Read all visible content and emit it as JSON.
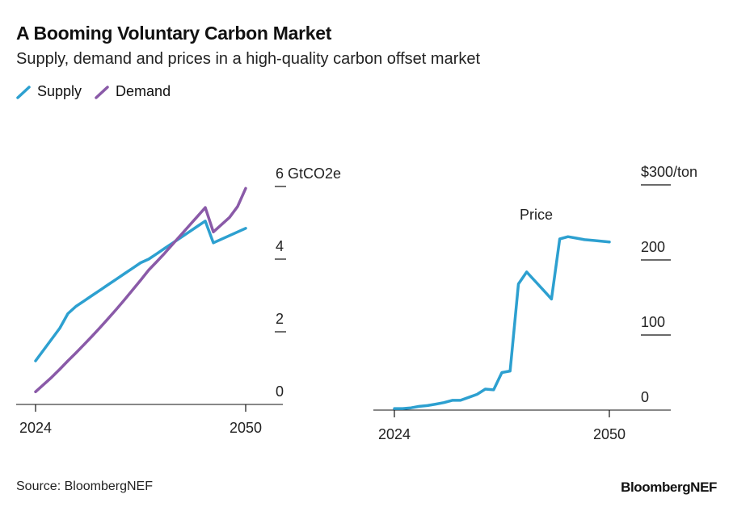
{
  "title": "A Booming Voluntary Carbon Market",
  "subtitle": "Supply, demand and prices in a high-quality carbon offset market",
  "source": "Source: BloombergNEF",
  "brand": "BloombergNEF",
  "colors": {
    "supply": "#2da0d0",
    "demand": "#8a5aa8",
    "price": "#2da0d0",
    "axis": "#111111"
  },
  "legend": [
    {
      "name": "Supply",
      "color": "#2da0d0"
    },
    {
      "name": "Demand",
      "color": "#8a5aa8"
    }
  ],
  "chart_data": [
    {
      "type": "line",
      "title": "",
      "unit": "GtCO2e",
      "x": [
        2024,
        2025,
        2026,
        2027,
        2028,
        2029,
        2030,
        2031,
        2032,
        2033,
        2034,
        2035,
        2036,
        2037,
        2038,
        2039,
        2040,
        2041,
        2042,
        2043,
        2044,
        2045,
        2046,
        2047,
        2048,
        2049,
        2050
      ],
      "series": [
        {
          "name": "Supply",
          "values": [
            1.2,
            1.5,
            1.8,
            2.1,
            2.5,
            2.7,
            2.85,
            3.0,
            3.15,
            3.3,
            3.45,
            3.6,
            3.75,
            3.9,
            4.0,
            4.15,
            4.3,
            4.45,
            4.6,
            4.75,
            4.9,
            5.05,
            4.45,
            4.55,
            4.65,
            4.75,
            4.85
          ]
        },
        {
          "name": "Demand",
          "values": [
            0.35,
            0.55,
            0.75,
            0.97,
            1.2,
            1.42,
            1.65,
            1.88,
            2.12,
            2.37,
            2.62,
            2.88,
            3.15,
            3.42,
            3.7,
            3.93,
            4.17,
            4.42,
            4.67,
            4.92,
            5.17,
            5.42,
            4.75,
            4.95,
            5.15,
            5.45,
            5.95
          ]
        }
      ],
      "xticks": [
        "2024",
        "2050"
      ],
      "yticks": [
        "0",
        "2",
        "4",
        "6 GtCO2e"
      ],
      "ylim": [
        0,
        6
      ]
    },
    {
      "type": "line",
      "title": "Price",
      "unit": "$/ton",
      "x": [
        2024,
        2025,
        2026,
        2027,
        2028,
        2029,
        2030,
        2031,
        2032,
        2033,
        2034,
        2035,
        2036,
        2037,
        2038,
        2039,
        2040,
        2041,
        2042,
        2043,
        2044,
        2045,
        2046,
        2047,
        2048,
        2049,
        2050
      ],
      "series": [
        {
          "name": "Price",
          "values": [
            2,
            2,
            3,
            5,
            6,
            8,
            10,
            13,
            13,
            17,
            21,
            28,
            27,
            50,
            52,
            168,
            184,
            172,
            160,
            148,
            228,
            231,
            229,
            227,
            226,
            225,
            224
          ]
        }
      ],
      "xticks": [
        "2024",
        "2050"
      ],
      "yticks": [
        "0",
        "100",
        "200",
        "$300/ton"
      ],
      "ylim": [
        0,
        300
      ]
    }
  ]
}
